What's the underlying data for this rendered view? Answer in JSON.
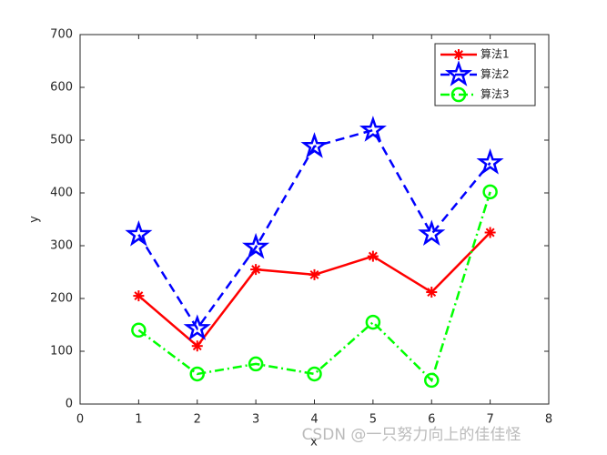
{
  "chart_data": {
    "type": "line",
    "xlabel": "x",
    "ylabel": "y",
    "x": [
      1,
      2,
      3,
      4,
      5,
      6,
      7
    ],
    "series": [
      {
        "name": "算法1",
        "color": "#ff0000",
        "marker": "asterisk",
        "linestyle": "solid",
        "values": [
          205,
          110,
          255,
          245,
          280,
          212,
          325
        ]
      },
      {
        "name": "算法2",
        "color": "#0000ff",
        "marker": "pentagram",
        "linestyle": "dashed",
        "values": [
          321,
          143,
          297,
          488,
          519,
          322,
          457
        ]
      },
      {
        "name": "算法3",
        "color": "#00ff00",
        "marker": "circle",
        "linestyle": "dashdot",
        "values": [
          140,
          57,
          76,
          57,
          155,
          45,
          402
        ]
      }
    ],
    "xlim": [
      0,
      8
    ],
    "xticks": [
      0,
      1,
      2,
      3,
      4,
      5,
      6,
      7,
      8
    ],
    "ylim": [
      0,
      700
    ],
    "yticks": [
      0,
      100,
      200,
      300,
      400,
      500,
      600,
      700
    ],
    "legend": "upper-right"
  },
  "watermark": "CSDN @一只努力向上的佳佳怪"
}
